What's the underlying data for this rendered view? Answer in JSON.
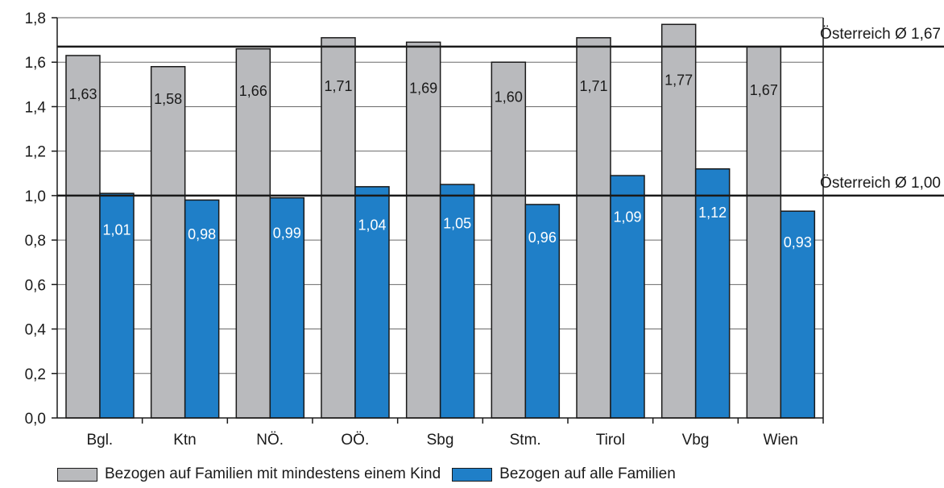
{
  "chart_data": {
    "type": "bar",
    "categories": [
      "Bgl.",
      "Ktn",
      "NÖ.",
      "OÖ.",
      "Sbg",
      "Stm.",
      "Tirol",
      "Vbg",
      "Wien"
    ],
    "series": [
      {
        "name": "Bezogen auf Familien mit mindestens einem Kind",
        "color": "#b9babd",
        "values": [
          1.63,
          1.58,
          1.66,
          1.71,
          1.69,
          1.6,
          1.71,
          1.77,
          1.67
        ],
        "labels": [
          "1,63",
          "1,58",
          "1,66",
          "1,71",
          "1,69",
          "1,60",
          "1,71",
          "1,77",
          "1,67"
        ]
      },
      {
        "name": "Bezogen auf alle Familien",
        "color": "#1f7fc8",
        "values": [
          1.01,
          0.98,
          0.99,
          1.04,
          1.05,
          0.96,
          1.09,
          1.12,
          0.93
        ],
        "labels": [
          "1,01",
          "0,98",
          "0,99",
          "1,04",
          "1,05",
          "0,96",
          "1,09",
          "1,12",
          "0,93"
        ]
      }
    ],
    "ylim": [
      0,
      1.8
    ],
    "yticks": [
      0,
      0.2,
      0.4,
      0.6,
      0.8,
      1.0,
      1.2,
      1.4,
      1.6,
      1.8
    ],
    "ytick_labels": [
      "0,0",
      "0,2",
      "0,4",
      "0,6",
      "0,8",
      "1,0",
      "1,2",
      "1,4",
      "1,6",
      "1,8"
    ],
    "reference_lines": [
      {
        "value": 1.67,
        "label": "Österreich Ø 1,67"
      },
      {
        "value": 1.0,
        "label": "Österreich Ø 1,00"
      }
    ],
    "grid": true,
    "legend_position": "bottom"
  },
  "legend": {
    "items": [
      {
        "label": "Bezogen auf Familien mit mindestens einem Kind",
        "color": "#b9babd"
      },
      {
        "label": "Bezogen auf alle Familien",
        "color": "#1f7fc8"
      }
    ]
  }
}
